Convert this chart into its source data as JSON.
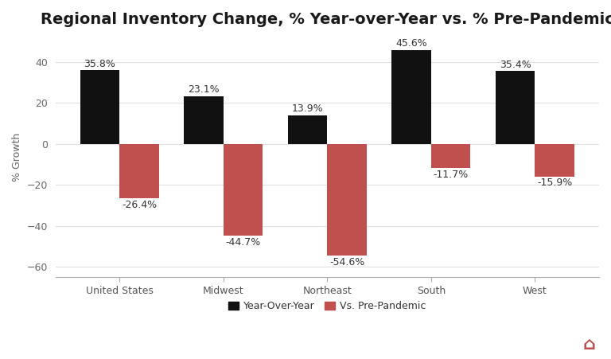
{
  "title": "Regional Inventory Change, % Year-over-Year vs. % Pre-Pandemic",
  "categories": [
    "United States",
    "Midwest",
    "Northeast",
    "South",
    "West"
  ],
  "yoy_values": [
    35.8,
    23.1,
    13.9,
    45.6,
    35.4
  ],
  "prepandemic_values": [
    -26.4,
    -44.7,
    -54.6,
    -11.7,
    -15.9
  ],
  "yoy_color": "#111111",
  "prepandemic_color": "#c0504d",
  "ylabel": "% Growth",
  "ylim": [
    -65,
    52
  ],
  "yticks": [
    -60,
    -40,
    -20,
    0,
    20,
    40
  ],
  "bar_width": 0.38,
  "legend_labels": [
    "Year-Over-Year",
    "Vs. Pre-Pandemic"
  ],
  "background_color": "#ffffff",
  "grid_color": "#e0e0e0",
  "title_fontsize": 14,
  "label_fontsize": 9,
  "tick_fontsize": 9,
  "annotation_fontsize": 9
}
